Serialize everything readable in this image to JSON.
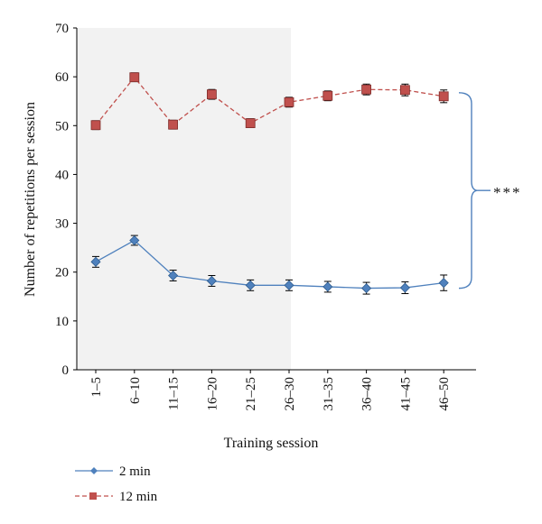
{
  "chart_data": {
    "type": "line",
    "xlabel": "Training session",
    "ylabel": "Number of repetitions per session",
    "categories": [
      "1–5",
      "6–10",
      "11–15",
      "16–20",
      "21–25",
      "26–30",
      "31–35",
      "36–40",
      "41–45",
      "46–50"
    ],
    "ylim": [
      0,
      70
    ],
    "yticks": [
      0,
      10,
      20,
      30,
      40,
      50,
      60,
      70
    ],
    "series": [
      {
        "name": "2 min",
        "color": "#4f81bd",
        "marker": "diamond",
        "line_style": "solid",
        "values": [
          22.1,
          26.5,
          19.3,
          18.2,
          17.3,
          17.3,
          17.0,
          16.7,
          16.8,
          17.8
        ],
        "errors": [
          1.1,
          1.0,
          1.1,
          1.1,
          1.1,
          1.1,
          1.1,
          1.2,
          1.2,
          1.6
        ]
      },
      {
        "name": "12 min",
        "color": "#c0504d",
        "marker": "square",
        "line_style": "dashed",
        "values": [
          50.1,
          59.9,
          50.2,
          56.4,
          50.5,
          54.8,
          56.1,
          57.4,
          57.3,
          56.0
        ],
        "errors": [
          0.9,
          0.9,
          0.9,
          1.0,
          0.9,
          1.0,
          1.0,
          1.1,
          1.2,
          1.3
        ]
      }
    ],
    "annotation": "***",
    "grid": false,
    "legend": "bottom-left"
  }
}
